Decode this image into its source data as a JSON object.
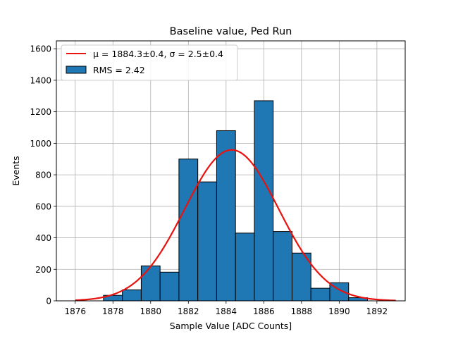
{
  "chart_data": {
    "type": "bar",
    "title": "Baseline value, Ped Run",
    "xlabel": "Sample Value [ADC Counts]",
    "ylabel": "Events",
    "xlim": [
      1875,
      1893.5
    ],
    "ylim": [
      0,
      1650
    ],
    "grid": true,
    "x_ticks": [
      1876,
      1878,
      1880,
      1882,
      1884,
      1886,
      1888,
      1890,
      1892
    ],
    "y_ticks": [
      0,
      200,
      400,
      600,
      800,
      1000,
      1200,
      1400,
      1600
    ],
    "histogram": {
      "name": "RMS = 2.42",
      "bin_width": 1,
      "bins": [
        {
          "left": 1877.5,
          "value": 35
        },
        {
          "left": 1878.5,
          "value": 70
        },
        {
          "left": 1879.5,
          "value": 222
        },
        {
          "left": 1880.5,
          "value": 182
        },
        {
          "left": 1881.5,
          "value": 900
        },
        {
          "left": 1882.5,
          "value": 755
        },
        {
          "left": 1883.5,
          "value": 1080
        },
        {
          "left": 1884.5,
          "value": 430
        },
        {
          "left": 1885.5,
          "value": 1270
        },
        {
          "left": 1886.5,
          "value": 440
        },
        {
          "left": 1887.5,
          "value": 303
        },
        {
          "left": 1888.5,
          "value": 80
        },
        {
          "left": 1889.5,
          "value": 115
        },
        {
          "left": 1890.5,
          "value": 20
        }
      ],
      "color": "#1f77b4",
      "edge_color": "#000000"
    },
    "fit": {
      "name": "μ = 1884.3±0.4, σ = 2.5±0.4",
      "mu": 1884.3,
      "sigma": 2.5,
      "amplitude": 958,
      "x_range": [
        1876,
        1893
      ],
      "color": "#e8120e"
    },
    "legend_position": "top-left"
  }
}
